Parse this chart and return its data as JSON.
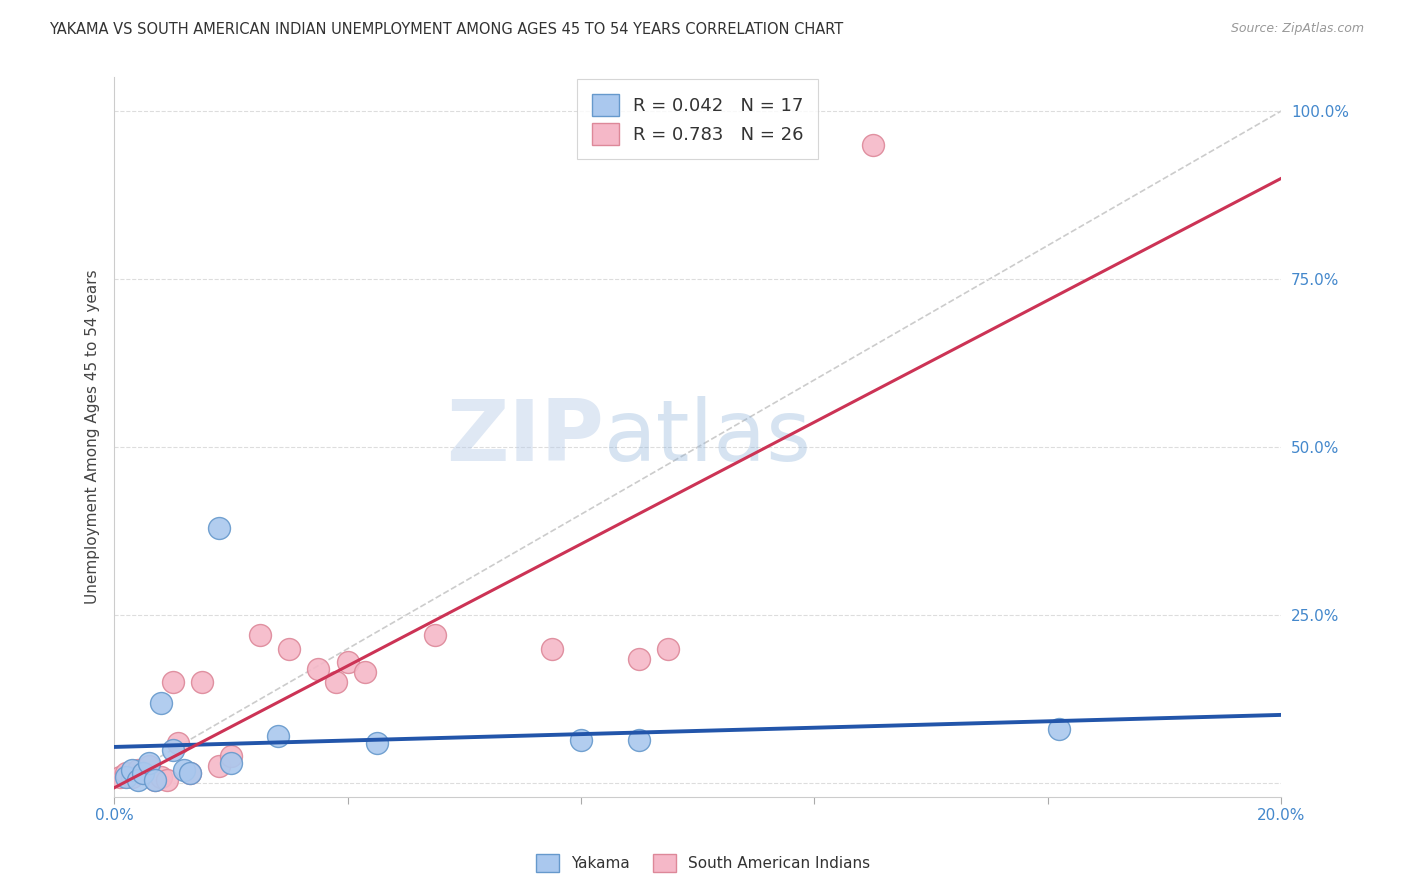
{
  "title": "YAKAMA VS SOUTH AMERICAN INDIAN UNEMPLOYMENT AMONG AGES 45 TO 54 YEARS CORRELATION CHART",
  "source": "Source: ZipAtlas.com",
  "ylabel": "Unemployment Among Ages 45 to 54 years",
  "xlim": [
    0.0,
    0.2
  ],
  "ylim": [
    -0.02,
    1.05
  ],
  "xticks": [
    0.0,
    0.04,
    0.08,
    0.12,
    0.16,
    0.2
  ],
  "yticks": [
    0.0,
    0.25,
    0.5,
    0.75,
    1.0
  ],
  "watermark_zip": "ZIP",
  "watermark_atlas": "atlas",
  "yakama_color": "#aac8ee",
  "sai_color": "#f5b8c8",
  "yakama_edge": "#6699cc",
  "sai_edge": "#dd8899",
  "trend_yakama_color": "#2255aa",
  "trend_sai_color": "#cc3355",
  "diag_color": "#cccccc",
  "grid_color": "#dddddd",
  "tick_color": "#4488cc",
  "R_yakama": 0.042,
  "N_yakama": 17,
  "R_sai": 0.783,
  "N_sai": 26,
  "yakama_x": [
    0.002,
    0.003,
    0.004,
    0.005,
    0.006,
    0.007,
    0.008,
    0.01,
    0.012,
    0.013,
    0.018,
    0.02,
    0.028,
    0.045,
    0.08,
    0.09,
    0.162
  ],
  "yakama_y": [
    0.01,
    0.02,
    0.005,
    0.015,
    0.03,
    0.005,
    0.12,
    0.05,
    0.02,
    0.015,
    0.38,
    0.03,
    0.07,
    0.06,
    0.065,
    0.065,
    0.08
  ],
  "sai_x": [
    0.001,
    0.002,
    0.003,
    0.004,
    0.005,
    0.006,
    0.007,
    0.008,
    0.009,
    0.01,
    0.011,
    0.013,
    0.015,
    0.018,
    0.02,
    0.025,
    0.03,
    0.035,
    0.038,
    0.04,
    0.043,
    0.055,
    0.075,
    0.09,
    0.095,
    0.13
  ],
  "sai_y": [
    0.01,
    0.015,
    0.01,
    0.02,
    0.015,
    0.025,
    0.005,
    0.01,
    0.005,
    0.15,
    0.06,
    0.015,
    0.15,
    0.025,
    0.04,
    0.22,
    0.2,
    0.17,
    0.15,
    0.18,
    0.165,
    0.22,
    0.2,
    0.185,
    0.2,
    0.95
  ],
  "legend_r_yakama": "R = 0.042",
  "legend_n_yakama": "N = 17",
  "legend_r_sai": "R = 0.783",
  "legend_n_sai": "N = 26"
}
